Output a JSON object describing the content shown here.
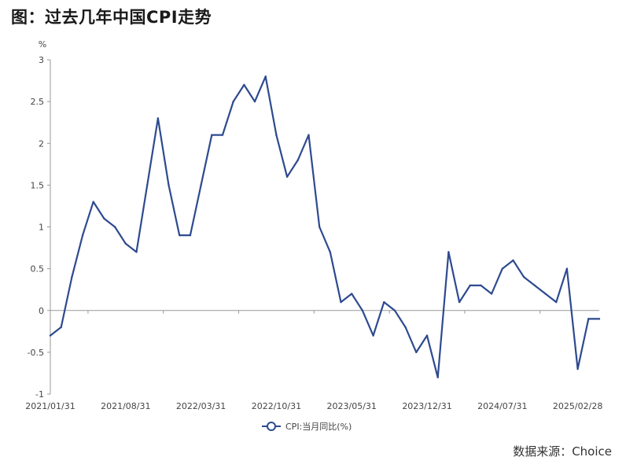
{
  "title": "图：过去几年中国CPI走势",
  "source": "数据来源：Choice",
  "chart_data": {
    "type": "line",
    "unit_label": "%",
    "ylim": [
      -1,
      3
    ],
    "yticks": [
      "3",
      "2.5",
      "2",
      "1.5",
      "1",
      "0.5",
      "0",
      "-0.5",
      "-1"
    ],
    "xtick_labels": [
      "2021/01/31",
      "2021/08/31",
      "2022/03/31",
      "2022/10/31",
      "2023/05/31",
      "2023/12/31",
      "2024/07/31",
      "2025/02/28"
    ],
    "legend_position": "bottom",
    "grid": false,
    "series": [
      {
        "name": "CPI:当月同比(%)",
        "color": "#2e4a8f",
        "values": [
          -0.3,
          -0.2,
          0.4,
          0.9,
          1.3,
          1.1,
          1.0,
          0.8,
          0.7,
          1.5,
          2.3,
          1.5,
          0.9,
          0.9,
          1.5,
          2.1,
          2.1,
          2.5,
          2.7,
          2.5,
          2.8,
          2.1,
          1.6,
          1.8,
          2.1,
          1.0,
          0.7,
          0.1,
          0.2,
          0.0,
          -0.3,
          0.1,
          0.0,
          -0.2,
          -0.5,
          -0.3,
          -0.8,
          0.7,
          0.1,
          0.3,
          0.3,
          0.2,
          0.5,
          0.6,
          0.4,
          0.3,
          0.2,
          0.1,
          0.5,
          -0.7,
          -0.1,
          -0.1
        ]
      }
    ]
  }
}
